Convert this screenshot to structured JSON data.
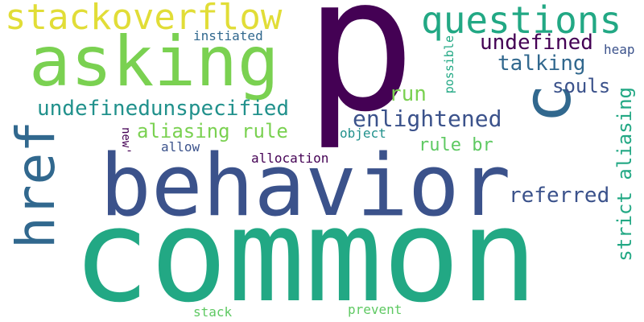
{
  "palette": {
    "purple": "#440154",
    "indigo": "#3b528b",
    "blue": "#31688e",
    "teal": "#21918c",
    "green": "#22a884",
    "lime": "#5ec962",
    "yellowgreen": "#7ad151",
    "yellow": "#e1dd37"
  },
  "words": {
    "p": "p",
    "common": "common",
    "behavior": "behavior",
    "asking": "asking",
    "stackoverflow": "stackoverflow",
    "questions": "questions",
    "c": "c",
    "href": "href",
    "undefinedunspecified": "undefinedunspecified",
    "aliasing_rule": "aliasing rule",
    "undefined": "undefined",
    "talking": "talking",
    "souls": "souls",
    "enlightened": "enlightened",
    "run": "run",
    "rule_br": "rule br",
    "referred": "referred",
    "strict_aliasing": "strict aliasing",
    "instiated": "instiated",
    "heap": "heap",
    "possible": "possible",
    "object": "object",
    "allow": "allow",
    "allocation": "allocation",
    "new": "new'",
    "stack": "stack",
    "prevent": "prevent"
  }
}
